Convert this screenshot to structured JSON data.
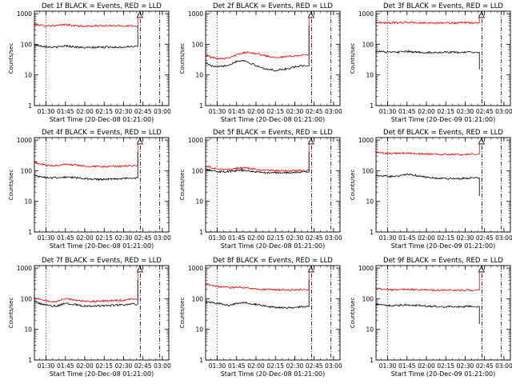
{
  "chart_data": [
    {
      "type": "line",
      "title": "Det 1f BLACK = Events, RED = LLD",
      "ylabel": "Counts/sec",
      "xlabel": "Start Time (20-Dec-08 01:21:00)",
      "x_ticks": [
        "01:30",
        "01:45",
        "02:00",
        "02:15",
        "02:30",
        "02:45",
        "03:00"
      ],
      "y_ticks": [
        "1",
        "10",
        "100",
        "1000"
      ],
      "y_scale": "log",
      "ylim": [
        1,
        1200
      ],
      "x": [
        "01:21",
        "01:25",
        "01:30",
        "01:35",
        "01:40",
        "01:45",
        "01:50",
        "01:55",
        "02:00",
        "02:05",
        "02:10",
        "02:15",
        "02:20",
        "02:25",
        "02:30",
        "02:35",
        "02:41"
      ],
      "series": [
        {
          "name": "LLD",
          "color": "#ff0000",
          "values": [
            450,
            420,
            400,
            405,
            410,
            440,
            410,
            400,
            390,
            395,
            400,
            400,
            400,
            400,
            400,
            400,
            950
          ]
        },
        {
          "name": "Events",
          "color": "#000000",
          "values": [
            95,
            90,
            85,
            80,
            82,
            90,
            85,
            80,
            78,
            78,
            80,
            80,
            82,
            80,
            82,
            85,
            400
          ]
        }
      ]
    },
    {
      "type": "line",
      "title": "Det 2f BLACK = Events, RED = LLD",
      "ylabel": "Counts/sec",
      "xlabel": "Start Time (20-Dec-08 01:21:00)",
      "x_ticks": [
        "01:30",
        "01:45",
        "02:00",
        "02:15",
        "02:30",
        "02:45",
        "03:00"
      ],
      "y_ticks": [
        "1",
        "10",
        "100",
        "1000"
      ],
      "y_scale": "log",
      "ylim": [
        1,
        1200
      ],
      "x": [
        "01:21",
        "01:25",
        "01:30",
        "01:35",
        "01:40",
        "01:45",
        "01:50",
        "01:55",
        "02:00",
        "02:05",
        "02:10",
        "02:15",
        "02:20",
        "02:25",
        "02:30",
        "02:35",
        "02:41"
      ],
      "series": [
        {
          "name": "LLD",
          "color": "#ff0000",
          "values": [
            45,
            38,
            35,
            35,
            38,
            45,
            52,
            55,
            50,
            45,
            40,
            38,
            38,
            40,
            42,
            44,
            950
          ]
        },
        {
          "name": "Events",
          "color": "#000000",
          "values": [
            25,
            20,
            18,
            20,
            22,
            28,
            30,
            25,
            20,
            17,
            15,
            14,
            15,
            16,
            18,
            20,
            400
          ]
        }
      ]
    },
    {
      "type": "line",
      "title": "Det 3f BLACK = Events, RED = LLD",
      "ylabel": "Counts/sec",
      "xlabel": "Start Time (20-Dec-09 01:21:00)",
      "x_ticks": [
        "01:30",
        "01:45",
        "02:00",
        "02:15",
        "02:30",
        "02:45",
        "03:00"
      ],
      "y_ticks": [
        "1",
        "10",
        "100",
        "1000"
      ],
      "y_scale": "log",
      "ylim": [
        1,
        1200
      ],
      "x": [
        "01:21",
        "01:25",
        "01:30",
        "01:35",
        "01:40",
        "01:45",
        "01:50",
        "01:55",
        "02:00",
        "02:05",
        "02:10",
        "02:15",
        "02:20",
        "02:25",
        "02:30",
        "02:35",
        "02:41"
      ],
      "series": [
        {
          "name": "LLD",
          "color": "#ff0000",
          "values": [
            520,
            510,
            500,
            505,
            510,
            520,
            510,
            500,
            495,
            495,
            500,
            500,
            500,
            495,
            500,
            500,
            950
          ]
        },
        {
          "name": "Events",
          "color": "#000000",
          "values": [
            60,
            58,
            55,
            55,
            56,
            58,
            56,
            55,
            54,
            54,
            55,
            55,
            55,
            54,
            55,
            55,
            15
          ]
        }
      ]
    },
    {
      "type": "line",
      "title": "Det 4f BLACK = Events, RED = LLD",
      "ylabel": "Counts/sec",
      "xlabel": "Start Time (20-Dec-08 01:21:00)",
      "x_ticks": [
        "01:30",
        "01:45",
        "02:00",
        "02:15",
        "02:30",
        "02:45",
        "03:00"
      ],
      "y_ticks": [
        "1",
        "10",
        "100",
        "1000"
      ],
      "y_scale": "log",
      "ylim": [
        1,
        1200
      ],
      "x": [
        "01:21",
        "01:25",
        "01:30",
        "01:35",
        "01:40",
        "01:45",
        "01:50",
        "01:55",
        "02:00",
        "02:05",
        "02:10",
        "02:15",
        "02:20",
        "02:25",
        "02:30",
        "02:35",
        "02:41"
      ],
      "series": [
        {
          "name": "LLD",
          "color": "#ff0000",
          "values": [
            190,
            170,
            150,
            145,
            150,
            160,
            155,
            150,
            140,
            135,
            135,
            135,
            140,
            140,
            140,
            145,
            950
          ]
        },
        {
          "name": "Events",
          "color": "#000000",
          "values": [
            70,
            65,
            60,
            58,
            60,
            62,
            60,
            58,
            55,
            52,
            52,
            52,
            54,
            55,
            55,
            58,
            400
          ]
        }
      ]
    },
    {
      "type": "line",
      "title": "Det 5f BLACK = Events, RED = LLD",
      "ylabel": "Counts/sec",
      "xlabel": "Start Time (20-Dec-08 01:21:00)",
      "x_ticks": [
        "01:30",
        "01:45",
        "02:00",
        "02:15",
        "02:30",
        "02:45",
        "03:00"
      ],
      "y_ticks": [
        "1",
        "10",
        "100",
        "1000"
      ],
      "y_scale": "log",
      "ylim": [
        1,
        1200
      ],
      "x": [
        "01:21",
        "01:25",
        "01:30",
        "01:35",
        "01:40",
        "01:45",
        "01:50",
        "01:55",
        "02:00",
        "02:05",
        "02:10",
        "02:15",
        "02:20",
        "02:25",
        "02:30",
        "02:35",
        "02:41"
      ],
      "series": [
        {
          "name": "LLD",
          "color": "#ff0000",
          "values": [
            140,
            130,
            115,
            110,
            112,
            120,
            122,
            118,
            110,
            105,
            102,
            100,
            100,
            100,
            100,
            102,
            950
          ]
        },
        {
          "name": "Events",
          "color": "#000000",
          "values": [
            115,
            105,
            95,
            92,
            95,
            100,
            102,
            98,
            92,
            88,
            85,
            85,
            85,
            86,
            88,
            90,
            400
          ]
        }
      ]
    },
    {
      "type": "line",
      "title": "Det 6f BLACK = Events, RED = LLD",
      "ylabel": "Counts/sec",
      "xlabel": "Start Time (20-Dec-09 01:21:00)",
      "x_ticks": [
        "01:30",
        "01:45",
        "02:00",
        "02:15",
        "02:30",
        "02:45",
        "03:00"
      ],
      "y_ticks": [
        "1",
        "10",
        "100",
        "1000"
      ],
      "y_scale": "log",
      "ylim": [
        1,
        1200
      ],
      "x": [
        "01:21",
        "01:25",
        "01:30",
        "01:35",
        "01:40",
        "01:45",
        "01:50",
        "01:55",
        "02:00",
        "02:05",
        "02:10",
        "02:15",
        "02:20",
        "02:25",
        "02:30",
        "02:35",
        "02:41"
      ],
      "series": [
        {
          "name": "LLD",
          "color": "#ff0000",
          "values": [
            400,
            380,
            370,
            365,
            370,
            375,
            370,
            360,
            350,
            345,
            340,
            340,
            340,
            335,
            340,
            345,
            950
          ]
        },
        {
          "name": "Events",
          "color": "#000000",
          "values": [
            70,
            68,
            65,
            65,
            70,
            78,
            72,
            65,
            62,
            58,
            56,
            55,
            55,
            55,
            56,
            58,
            15
          ]
        }
      ]
    },
    {
      "type": "line",
      "title": "Det 7f BLACK = Events, RED = LLD",
      "ylabel": "Counts/sec",
      "xlabel": "Start Time (20-Dec-08 01:21:00)",
      "x_ticks": [
        "01:30",
        "01:45",
        "02:00",
        "02:15",
        "02:30",
        "02:45",
        "03:00"
      ],
      "y_ticks": [
        "1",
        "10",
        "100",
        "1000"
      ],
      "y_scale": "log",
      "ylim": [
        1,
        1200
      ],
      "x": [
        "01:21",
        "01:25",
        "01:30",
        "01:35",
        "01:40",
        "01:45",
        "01:50",
        "01:55",
        "02:00",
        "02:05",
        "02:10",
        "02:15",
        "02:20",
        "02:25",
        "02:30",
        "02:35",
        "02:41"
      ],
      "series": [
        {
          "name": "LLD",
          "color": "#ff0000",
          "values": [
            110,
            95,
            85,
            80,
            85,
            100,
            95,
            88,
            82,
            80,
            82,
            85,
            85,
            88,
            90,
            95,
            950
          ]
        },
        {
          "name": "Events",
          "color": "#000000",
          "values": [
            80,
            70,
            62,
            58,
            60,
            70,
            68,
            62,
            58,
            56,
            58,
            60,
            60,
            62,
            64,
            66,
            400
          ]
        }
      ]
    },
    {
      "type": "line",
      "title": "Det 8f BLACK = Events, RED = LLD",
      "ylabel": "Counts/sec",
      "xlabel": "Start Time (20-Dec-08 01:21:00)",
      "x_ticks": [
        "01:30",
        "01:45",
        "02:00",
        "02:15",
        "02:30",
        "02:45",
        "03:00"
      ],
      "y_ticks": [
        "1",
        "10",
        "100",
        "1000"
      ],
      "y_scale": "log",
      "ylim": [
        1,
        1200
      ],
      "x": [
        "01:21",
        "01:25",
        "01:30",
        "01:35",
        "01:40",
        "01:45",
        "01:50",
        "01:55",
        "02:00",
        "02:05",
        "02:10",
        "02:15",
        "02:20",
        "02:25",
        "02:30",
        "02:35",
        "02:41"
      ],
      "series": [
        {
          "name": "LLD",
          "color": "#ff0000",
          "values": [
            300,
            280,
            250,
            240,
            230,
            240,
            230,
            220,
            210,
            200,
            200,
            195,
            195,
            190,
            195,
            200,
            950
          ]
        },
        {
          "name": "Events",
          "color": "#000000",
          "values": [
            80,
            75,
            70,
            65,
            60,
            70,
            75,
            70,
            65,
            60,
            55,
            52,
            52,
            50,
            52,
            55,
            400
          ]
        }
      ]
    },
    {
      "type": "line",
      "title": "Det 9f BLACK = Events, RED = LLD",
      "ylabel": "Counts/sec",
      "xlabel": "Start Time (20-Dec-09 01:21:00)",
      "x_ticks": [
        "01:30",
        "01:45",
        "02:00",
        "02:15",
        "02:30",
        "02:45",
        "03:00"
      ],
      "y_ticks": [
        "1",
        "10",
        "100",
        "1000"
      ],
      "y_scale": "log",
      "ylim": [
        1,
        1200
      ],
      "x": [
        "01:21",
        "01:25",
        "01:30",
        "01:35",
        "01:40",
        "01:45",
        "01:50",
        "01:55",
        "02:00",
        "02:05",
        "02:10",
        "02:15",
        "02:20",
        "02:25",
        "02:30",
        "02:35",
        "02:41"
      ],
      "series": [
        {
          "name": "LLD",
          "color": "#ff0000",
          "values": [
            220,
            205,
            195,
            195,
            200,
            205,
            200,
            195,
            195,
            190,
            190,
            190,
            188,
            188,
            190,
            190,
            950
          ]
        },
        {
          "name": "Events",
          "color": "#000000",
          "values": [
            65,
            62,
            60,
            60,
            62,
            64,
            62,
            60,
            58,
            56,
            56,
            55,
            55,
            55,
            56,
            56,
            15
          ]
        }
      ]
    }
  ]
}
